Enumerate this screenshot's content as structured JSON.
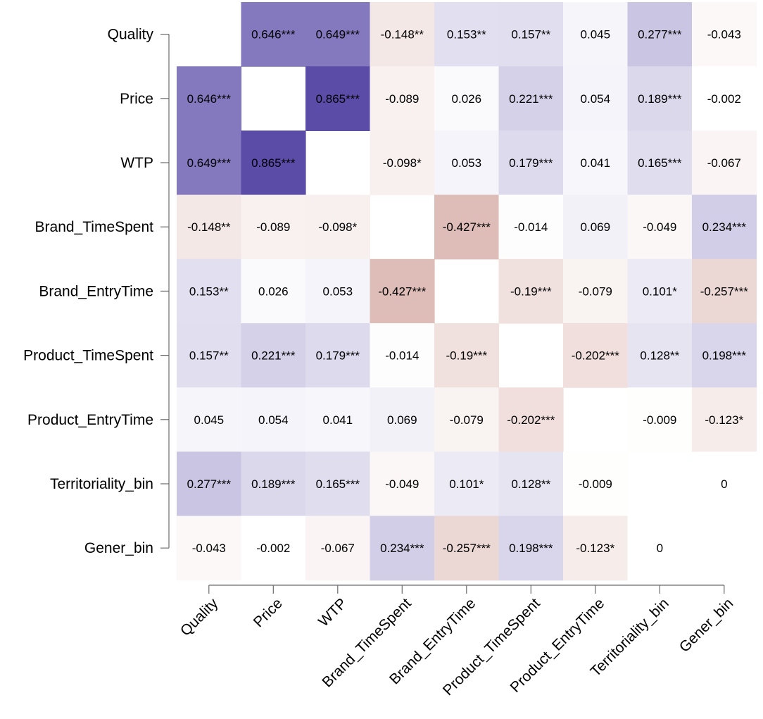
{
  "chart_data": {
    "type": "heatmap",
    "title": "",
    "xlabel": "",
    "ylabel": "",
    "variables": [
      "Quality",
      "Price",
      "WTP",
      "Brand_TimeSpent",
      "Brand_EntryTime",
      "Product_TimeSpent",
      "Product_EntryTime",
      "Territoriality_bin",
      "Gener_bin"
    ],
    "row_labels": [
      "Quality",
      "Price",
      "WTP",
      "Brand_TimeSpent",
      "Brand_EntryTime",
      "Product_TimeSpent",
      "Product_EntryTime",
      "Territoriality_bin",
      "Gener_bin"
    ],
    "col_labels": [
      "Quality",
      "Price",
      "WTP",
      "Brand_TimeSpent",
      "Brand_EntryTime",
      "Product_TimeSpent",
      "Product_EntryTime",
      "Territoriality_bin",
      "Gener_bin"
    ],
    "value_range": [
      -1,
      1
    ],
    "colors": {
      "positive": "#5b4ca8",
      "negative": "#bd786e",
      "neutral": "#ffffff"
    },
    "cells": [
      [
        null,
        {
          "v": 0.646,
          "label": "0.646***"
        },
        {
          "v": 0.649,
          "label": "0.649***"
        },
        {
          "v": -0.148,
          "label": "-0.148**"
        },
        {
          "v": 0.153,
          "label": "0.153**"
        },
        {
          "v": 0.157,
          "label": "0.157**"
        },
        {
          "v": 0.045,
          "label": "0.045"
        },
        {
          "v": 0.277,
          "label": "0.277***"
        },
        {
          "v": -0.043,
          "label": "-0.043"
        }
      ],
      [
        {
          "v": 0.646,
          "label": "0.646***"
        },
        null,
        {
          "v": 0.865,
          "label": "0.865***"
        },
        {
          "v": -0.089,
          "label": "-0.089"
        },
        {
          "v": 0.026,
          "label": "0.026"
        },
        {
          "v": 0.221,
          "label": "0.221***"
        },
        {
          "v": 0.054,
          "label": "0.054"
        },
        {
          "v": 0.189,
          "label": "0.189***"
        },
        {
          "v": -0.002,
          "label": "-0.002"
        }
      ],
      [
        {
          "v": 0.649,
          "label": "0.649***"
        },
        {
          "v": 0.865,
          "label": "0.865***"
        },
        null,
        {
          "v": -0.098,
          "label": "-0.098*"
        },
        {
          "v": 0.053,
          "label": "0.053"
        },
        {
          "v": 0.179,
          "label": "0.179***"
        },
        {
          "v": 0.041,
          "label": "0.041"
        },
        {
          "v": 0.165,
          "label": "0.165***"
        },
        {
          "v": -0.067,
          "label": "-0.067"
        }
      ],
      [
        {
          "v": -0.148,
          "label": "-0.148**"
        },
        {
          "v": -0.089,
          "label": "-0.089"
        },
        {
          "v": -0.098,
          "label": "-0.098*"
        },
        null,
        {
          "v": -0.427,
          "label": "-0.427***"
        },
        {
          "v": -0.014,
          "label": "-0.014"
        },
        {
          "v": 0.069,
          "label": "0.069"
        },
        {
          "v": -0.049,
          "label": "-0.049"
        },
        {
          "v": 0.234,
          "label": "0.234***"
        }
      ],
      [
        {
          "v": 0.153,
          "label": "0.153**"
        },
        {
          "v": 0.026,
          "label": "0.026"
        },
        {
          "v": 0.053,
          "label": "0.053"
        },
        {
          "v": -0.427,
          "label": "-0.427***"
        },
        null,
        {
          "v": -0.19,
          "label": "-0.19***"
        },
        {
          "v": -0.079,
          "label": "-0.079"
        },
        {
          "v": 0.101,
          "label": "0.101*"
        },
        {
          "v": -0.257,
          "label": "-0.257***"
        }
      ],
      [
        {
          "v": 0.157,
          "label": "0.157**"
        },
        {
          "v": 0.221,
          "label": "0.221***"
        },
        {
          "v": 0.179,
          "label": "0.179***"
        },
        {
          "v": -0.014,
          "label": "-0.014"
        },
        {
          "v": -0.19,
          "label": "-0.19***"
        },
        null,
        {
          "v": -0.202,
          "label": "-0.202***"
        },
        {
          "v": 0.128,
          "label": "0.128**"
        },
        {
          "v": 0.198,
          "label": "0.198***"
        }
      ],
      [
        {
          "v": 0.045,
          "label": "0.045"
        },
        {
          "v": 0.054,
          "label": "0.054"
        },
        {
          "v": 0.041,
          "label": "0.041"
        },
        {
          "v": 0.069,
          "label": "0.069"
        },
        {
          "v": -0.079,
          "label": "-0.079"
        },
        {
          "v": -0.202,
          "label": "-0.202***"
        },
        null,
        {
          "v": -0.009,
          "label": "-0.009"
        },
        {
          "v": -0.123,
          "label": "-0.123*"
        }
      ],
      [
        {
          "v": 0.277,
          "label": "0.277***"
        },
        {
          "v": 0.189,
          "label": "0.189***"
        },
        {
          "v": 0.165,
          "label": "0.165***"
        },
        {
          "v": -0.049,
          "label": "-0.049"
        },
        {
          "v": 0.101,
          "label": "0.101*"
        },
        {
          "v": 0.128,
          "label": "0.128**"
        },
        {
          "v": -0.009,
          "label": "-0.009"
        },
        null,
        {
          "v": 0,
          "label": "0"
        }
      ],
      [
        {
          "v": -0.043,
          "label": "-0.043"
        },
        {
          "v": -0.002,
          "label": "-0.002"
        },
        {
          "v": -0.067,
          "label": "-0.067"
        },
        {
          "v": 0.234,
          "label": "0.234***"
        },
        {
          "v": -0.257,
          "label": "-0.257***"
        },
        {
          "v": 0.198,
          "label": "0.198***"
        },
        {
          "v": -0.123,
          "label": "-0.123*"
        },
        {
          "v": 0,
          "label": "0"
        },
        null
      ]
    ]
  }
}
